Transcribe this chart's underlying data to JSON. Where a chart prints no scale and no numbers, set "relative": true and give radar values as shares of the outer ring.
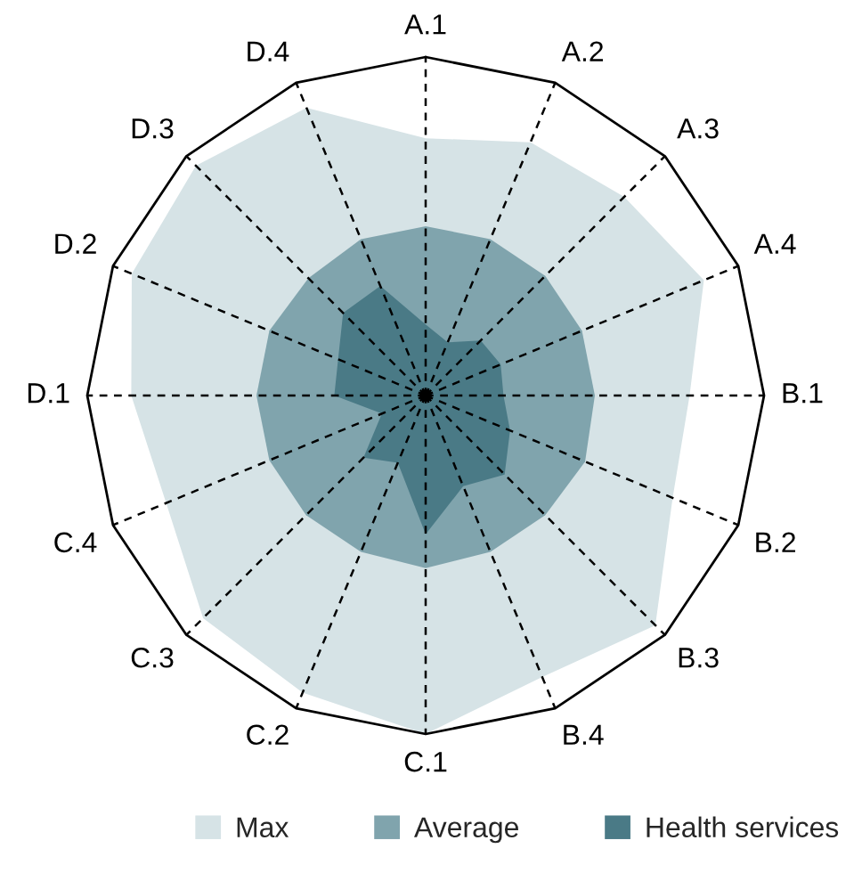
{
  "chart_data": {
    "type": "radar",
    "relative": true,
    "categories": [
      "A.1",
      "A.2",
      "A.3",
      "A.4",
      "B.1",
      "B.2",
      "B.3",
      "B.4",
      "C.1",
      "C.2",
      "C.3",
      "C.4",
      "D.1",
      "D.2",
      "D.3",
      "D.4"
    ],
    "series": [
      {
        "name": "Max",
        "color": "#d6e3e6",
        "values": [
          0.76,
          0.81,
          0.83,
          0.89,
          0.78,
          0.79,
          0.96,
          0.9,
          1.0,
          0.95,
          0.93,
          0.83,
          0.87,
          0.94,
          0.96,
          0.92
        ]
      },
      {
        "name": "Average",
        "color": "#80a4ad",
        "values": [
          0.5,
          0.5,
          0.5,
          0.5,
          0.5,
          0.51,
          0.5,
          0.5,
          0.51,
          0.5,
          0.5,
          0.5,
          0.5,
          0.5,
          0.49,
          0.5
        ]
      },
      {
        "name": "Health services",
        "color": "#4a7a86",
        "values": [
          0.21,
          0.17,
          0.23,
          0.24,
          0.23,
          0.27,
          0.33,
          0.29,
          0.41,
          0.215,
          0.26,
          0.14,
          0.27,
          0.28,
          0.345,
          0.35
        ]
      }
    ],
    "grid": true,
    "legend": "bottom"
  }
}
